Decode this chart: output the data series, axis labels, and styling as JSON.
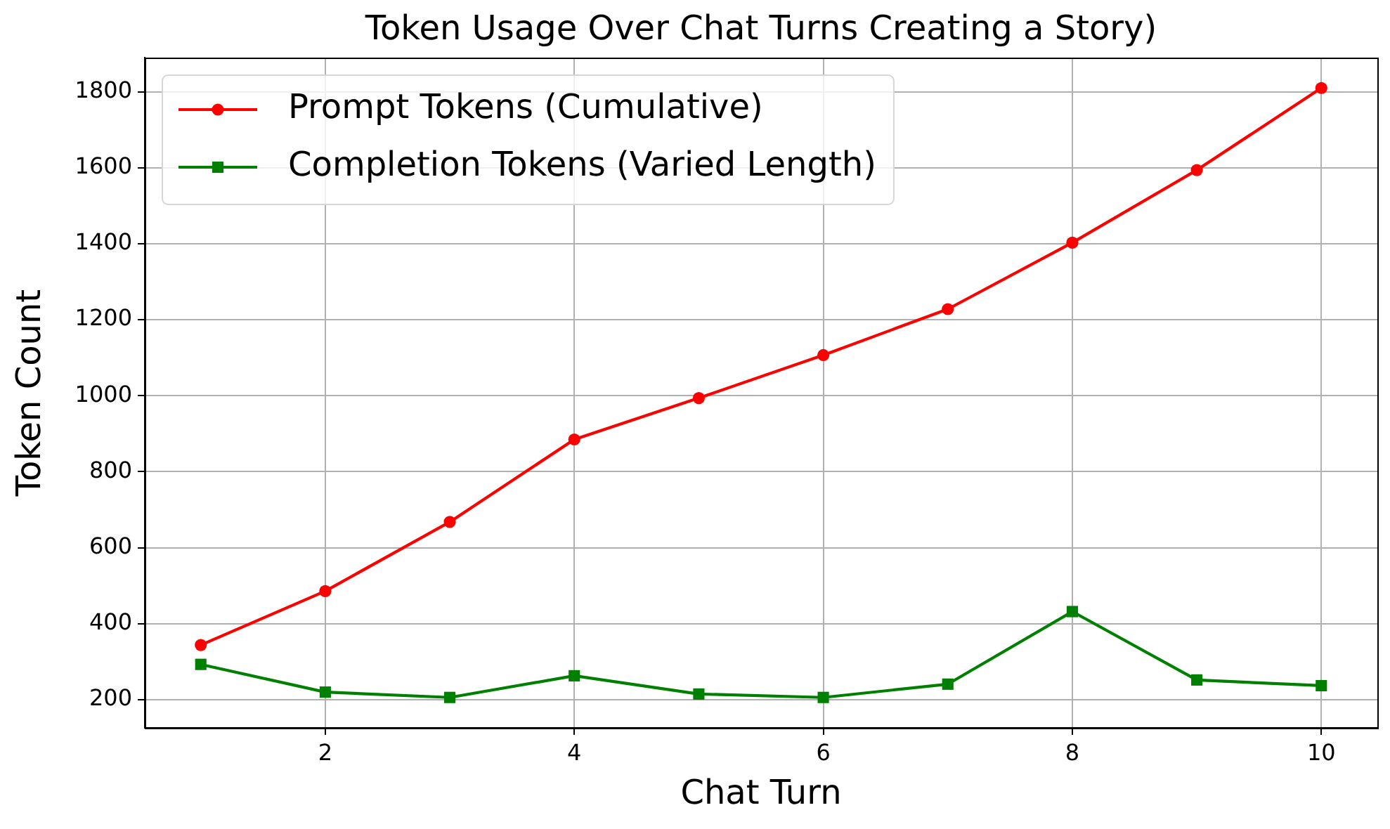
{
  "chart_data": {
    "type": "line",
    "title": "Token Usage Over Chat Turns Creating a Story)",
    "xlabel": "Chat Turn",
    "ylabel": "Token Count",
    "x": [
      1,
      2,
      3,
      4,
      5,
      6,
      7,
      8,
      9,
      10
    ],
    "series": [
      {
        "name": "Prompt Tokens (Cumulative)",
        "color": "#ff0000",
        "marker": "circle",
        "values": [
          344,
          486,
          668,
          885,
          994,
          1107,
          1228,
          1403,
          1594,
          1810
        ]
      },
      {
        "name": "Completion Tokens (Varied Length)",
        "color": "#008000",
        "marker": "square",
        "values": [
          293,
          220,
          206,
          263,
          215,
          206,
          241,
          432,
          252,
          237
        ]
      }
    ],
    "xlim": [
      0.55,
      10.45
    ],
    "ylim": [
      126,
      1890
    ],
    "xticks": [
      2,
      4,
      6,
      8,
      10
    ],
    "yticks": [
      200,
      400,
      600,
      800,
      1000,
      1200,
      1400,
      1600,
      1800
    ],
    "grid": true,
    "legend": "top left",
    "line_style": "solid"
  }
}
